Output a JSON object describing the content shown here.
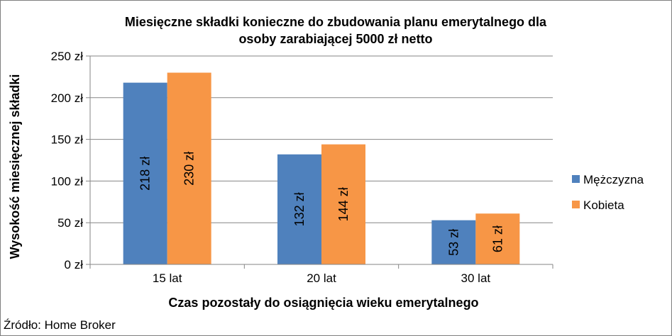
{
  "chart_data": {
    "type": "bar",
    "title_lines": [
      "Miesięczne składki konieczne do zbudowania planu emerytalnego dla",
      "osoby zarabiającej 5000 zł netto"
    ],
    "xlabel": "Czas pozostały do osiągnięcia wieku emerytalnego",
    "ylabel": "Wysokość miesięcznej składki",
    "categories": [
      "15 lat",
      "20 lat",
      "30 lat"
    ],
    "series": [
      {
        "name": "Mężczyzna",
        "color": "#4f81bd",
        "values": [
          218,
          132,
          53
        ],
        "labels": [
          "218 zł",
          "132 zł",
          "53 zł"
        ]
      },
      {
        "name": "Kobieta",
        "color": "#f79646",
        "values": [
          230,
          144,
          61
        ],
        "labels": [
          "230 zł",
          "144 zł",
          "61 zł"
        ]
      }
    ],
    "ylim": [
      0,
      250
    ],
    "yticks": [
      0,
      50,
      100,
      150,
      200,
      250
    ],
    "ytick_labels": [
      "0 zł",
      "50 zł",
      "100 zł",
      "150 zł",
      "200 zł",
      "250 zł"
    ],
    "grid": true,
    "legend_position": "right"
  },
  "source": "Źródło: Home Broker"
}
